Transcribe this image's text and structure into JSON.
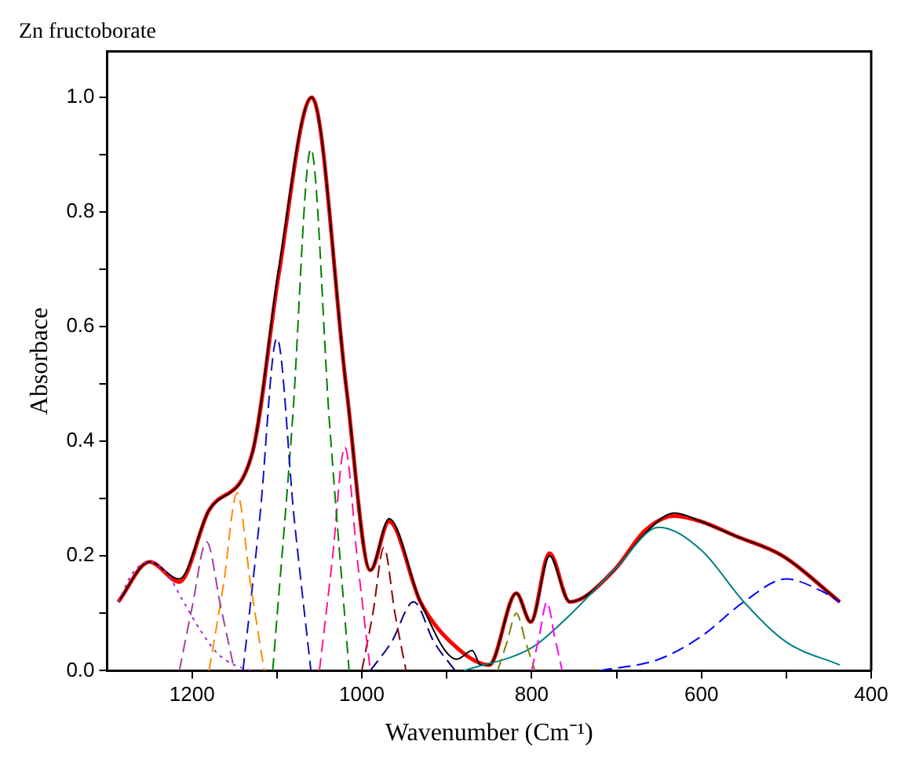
{
  "chart_data": {
    "type": "line",
    "title": "Zn fructoborate",
    "xlabel": "Wavenumber (Cm⁻¹)",
    "ylabel": "Absorbace",
    "xlim": [
      1300,
      400
    ],
    "ylim": [
      0,
      1.08
    ],
    "xticks": [
      1200,
      {
        "value": 1100,
        "label": null
      },
      1000,
      {
        "value": 900,
        "label": null
      },
      800,
      {
        "value": 700,
        "label": null
      },
      600,
      {
        "value": 500,
        "label": null
      },
      400
    ],
    "yticks": [
      {
        "value": 0,
        "label": "0.0"
      },
      {
        "value": 0.1,
        "label": null
      },
      {
        "value": 0.2,
        "label": "0.2"
      },
      {
        "value": 0.3,
        "label": null
      },
      {
        "value": 0.4,
        "label": "0.4"
      },
      {
        "value": 0.5,
        "label": null
      },
      {
        "value": 0.6,
        "label": "0.6"
      },
      {
        "value": 0.7,
        "label": null
      },
      {
        "value": 0.8,
        "label": "0.8"
      },
      {
        "value": 0.9,
        "label": null
      },
      {
        "value": 1.0,
        "label": "1.0"
      }
    ],
    "grid": false,
    "legend": false,
    "marker": "none",
    "series": [
      {
        "color": "#9b30d0",
        "line_style": "dotted",
        "x": [
          1287,
          1270,
          1250,
          1230,
          1210,
          1190,
          1170,
          1150,
          1130
        ],
        "values": [
          0.12,
          0.17,
          0.19,
          0.17,
          0.12,
          0.07,
          0.03,
          0.01,
          0
        ]
      },
      {
        "color": "#a040a0",
        "line_style": "dashed",
        "x": [
          1215,
          1200,
          1183,
          1166,
          1150
        ],
        "values": [
          0,
          0.11,
          0.225,
          0.11,
          0
        ]
      },
      {
        "color": "#ff8c00",
        "line_style": "dashed",
        "x": [
          1180,
          1163,
          1147,
          1131,
          1115
        ],
        "values": [
          0,
          0.15,
          0.31,
          0.15,
          0
        ]
      },
      {
        "color": "#1010c0",
        "line_style": "dashed",
        "x": [
          1140,
          1120,
          1100,
          1080,
          1060
        ],
        "values": [
          0,
          0.27,
          0.58,
          0.27,
          0
        ]
      },
      {
        "color": "#008000",
        "line_style": "dashed",
        "x": [
          1105,
          1082,
          1060,
          1038,
          1015
        ],
        "values": [
          0,
          0.43,
          0.91,
          0.43,
          0
        ]
      },
      {
        "color": "#ff1493",
        "line_style": "dashed",
        "x": [
          1050,
          1035,
          1020,
          1005,
          990
        ],
        "values": [
          0,
          0.19,
          0.39,
          0.19,
          0
        ]
      },
      {
        "color": "#8b0000",
        "line_style": "dashed",
        "x": [
          1000,
          987,
          974,
          961,
          948
        ],
        "values": [
          0,
          0.1,
          0.215,
          0.1,
          0
        ]
      },
      {
        "color": "#000080",
        "line_style": "dashed",
        "x": [
          990,
          965,
          939,
          915,
          890
        ],
        "values": [
          0,
          0.05,
          0.12,
          0.05,
          0
        ]
      },
      {
        "color": "#808000",
        "line_style": "dashed",
        "x": [
          840,
          829,
          818,
          807,
          796
        ],
        "values": [
          0,
          0.05,
          0.1,
          0.05,
          0
        ]
      },
      {
        "color": "#ff00ff",
        "line_style": "dashed",
        "x": [
          800,
          791,
          782,
          773,
          764
        ],
        "values": [
          0,
          0.06,
          0.12,
          0.06,
          0
        ]
      },
      {
        "color": "#008080",
        "line_style": "solid",
        "x": [
          880,
          800,
          760,
          700,
          650,
          600,
          550,
          500,
          437
        ],
        "values": [
          0,
          0.04,
          0.09,
          0.18,
          0.25,
          0.21,
          0.12,
          0.05,
          0.01
        ]
      },
      {
        "color": "#0000ff",
        "line_style": "dashed",
        "x": [
          720,
          650,
          600,
          550,
          500,
          460,
          437
        ],
        "values": [
          0,
          0.02,
          0.06,
          0.12,
          0.16,
          0.14,
          0.12
        ]
      },
      {
        "color": "#000000",
        "line_style": "solid",
        "x": [
          1287,
          1250,
          1215,
          1180,
          1129,
          1098,
          1059,
          1018,
          990,
          968,
          931,
          888,
          870,
          860,
          850,
          818,
          801,
          779,
          755,
          703,
          666,
          632,
          600,
          560,
          504,
          437
        ],
        "values": [
          0.12,
          0.19,
          0.16,
          0.28,
          0.38,
          0.7,
          1.0,
          0.49,
          0.175,
          0.265,
          0.12,
          0.02,
          0.035,
          0.01,
          0.01,
          0.135,
          0.085,
          0.2,
          0.12,
          0.175,
          0.24,
          0.275,
          0.26,
          0.235,
          0.2,
          0.12
        ]
      },
      {
        "color": "#ff0000",
        "line_style": "solid",
        "x": [
          1287,
          1250,
          1215,
          1180,
          1129,
          1098,
          1059,
          1018,
          990,
          968,
          931,
          888,
          850,
          818,
          801,
          779,
          755,
          703,
          666,
          632,
          600,
          560,
          504,
          437
        ],
        "values": [
          0.12,
          0.19,
          0.155,
          0.28,
          0.38,
          0.69,
          1.0,
          0.49,
          0.175,
          0.26,
          0.12,
          0.04,
          0.01,
          0.135,
          0.085,
          0.205,
          0.12,
          0.175,
          0.245,
          0.27,
          0.26,
          0.235,
          0.2,
          0.12
        ]
      }
    ]
  }
}
